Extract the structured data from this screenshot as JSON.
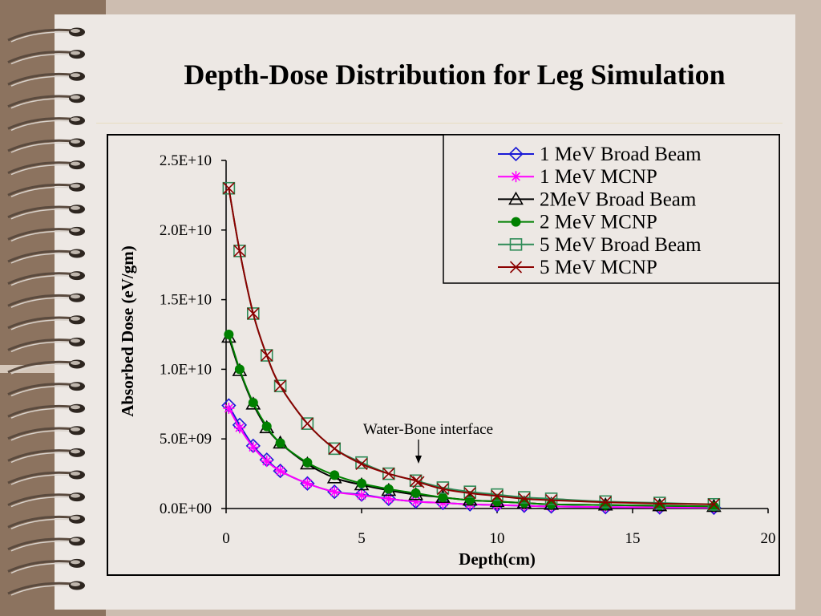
{
  "slide": {
    "title": "Depth-Dose Distribution for Leg Simulation"
  },
  "colors": {
    "background": "#cdbdb0",
    "slide": "#ede8e4",
    "strip": "#8c735f"
  },
  "chart_data": {
    "type": "line",
    "title": "",
    "xlabel": "Depth(cm)",
    "ylabel": "Absorbed Dose (eV/gm)",
    "xlim": [
      0,
      20
    ],
    "ylim": [
      0,
      25000000000
    ],
    "xticks": [
      0,
      5,
      10,
      15,
      20
    ],
    "xtick_labels": [
      "0",
      "5",
      "10",
      "15",
      "20"
    ],
    "yticks": [
      0,
      5000000000,
      10000000000,
      15000000000,
      20000000000,
      25000000000
    ],
    "ytick_labels": [
      "0.0E+00",
      "5.0E+09",
      "1.0E+10",
      "1.5E+10",
      "2.0E+10",
      "2.5E+10"
    ],
    "grid": false,
    "legend_position": "top-right",
    "annotation": {
      "text": "Water-Bone interface",
      "x": 7.1
    },
    "series": [
      {
        "name": "1 MeV Broad Beam",
        "color": "#1a1ad6",
        "marker": "diamond",
        "x": [
          0.1,
          0.5,
          1,
          1.5,
          2,
          3,
          4,
          5,
          6,
          7,
          8,
          9,
          10,
          11,
          12,
          14,
          16,
          18
        ],
        "y": [
          7400000000,
          6000000000,
          4500000000,
          3500000000,
          2700000000,
          1800000000,
          1200000000,
          1000000000,
          700000000,
          500000000,
          400000000,
          300000000,
          250000000,
          200000000,
          150000000,
          100000000,
          80000000,
          60000000
        ]
      },
      {
        "name": "1 MeV MCNP",
        "color": "#ff00ff",
        "marker": "asterisk",
        "x": [
          0.1,
          0.5,
          1,
          1.5,
          2,
          3,
          4,
          5,
          6,
          7,
          8,
          9,
          10,
          11,
          12,
          14,
          16,
          18
        ],
        "y": [
          7200000000,
          5800000000,
          4400000000,
          3400000000,
          2700000000,
          1800000000,
          1200000000,
          950000000,
          700000000,
          500000000,
          400000000,
          300000000,
          250000000,
          200000000,
          150000000,
          100000000,
          80000000,
          60000000
        ]
      },
      {
        "name": "2MeV Broad Beam",
        "color": "#000000",
        "marker": "triangle",
        "x": [
          0.1,
          0.5,
          1,
          1.5,
          2,
          3,
          4,
          5,
          6,
          7,
          8,
          9,
          10,
          11,
          12,
          14,
          16,
          18
        ],
        "y": [
          12300000000,
          9900000000,
          7500000000,
          5800000000,
          4700000000,
          3200000000,
          2200000000,
          1700000000,
          1300000000,
          1000000000,
          800000000,
          600000000,
          500000000,
          400000000,
          300000000,
          250000000,
          200000000,
          150000000
        ]
      },
      {
        "name": "2 MeV MCNP",
        "color": "#008000",
        "marker": "circle",
        "x": [
          0.1,
          0.5,
          1,
          1.5,
          2,
          3,
          4,
          5,
          6,
          7,
          8,
          9,
          10,
          11,
          12,
          14,
          16,
          18
        ],
        "y": [
          12500000000,
          10000000000,
          7600000000,
          5900000000,
          4700000000,
          3300000000,
          2400000000,
          1800000000,
          1400000000,
          1100000000,
          800000000,
          600000000,
          500000000,
          400000000,
          300000000,
          250000000,
          200000000,
          150000000
        ]
      },
      {
        "name": "5 MeV Broad Beam",
        "color": "#2e8b57",
        "marker": "square",
        "x": [
          0.1,
          0.5,
          1,
          1.5,
          2,
          3,
          4,
          5,
          6,
          7,
          8,
          9,
          10,
          11,
          12,
          14,
          16,
          18
        ],
        "y": [
          23000000000,
          18500000000,
          14000000000,
          11000000000,
          8800000000,
          6100000000,
          4300000000,
          3300000000,
          2500000000,
          2000000000,
          1500000000,
          1200000000,
          1000000000,
          800000000,
          700000000,
          500000000,
          400000000,
          300000000
        ]
      },
      {
        "name": "5 MeV MCNP",
        "color": "#8b0000",
        "marker": "x",
        "x": [
          0.1,
          0.5,
          1,
          1.5,
          2,
          3,
          4,
          5,
          6,
          7,
          7.1,
          8,
          9,
          10,
          11,
          12,
          14,
          16,
          18
        ],
        "y": [
          23000000000,
          18500000000,
          14000000000,
          11000000000,
          8800000000,
          6100000000,
          4300000000,
          3200000000,
          2500000000,
          2000000000,
          1900000000,
          1400000000,
          1100000000,
          900000000,
          700000000,
          600000000,
          450000000,
          350000000,
          300000000
        ]
      }
    ]
  }
}
